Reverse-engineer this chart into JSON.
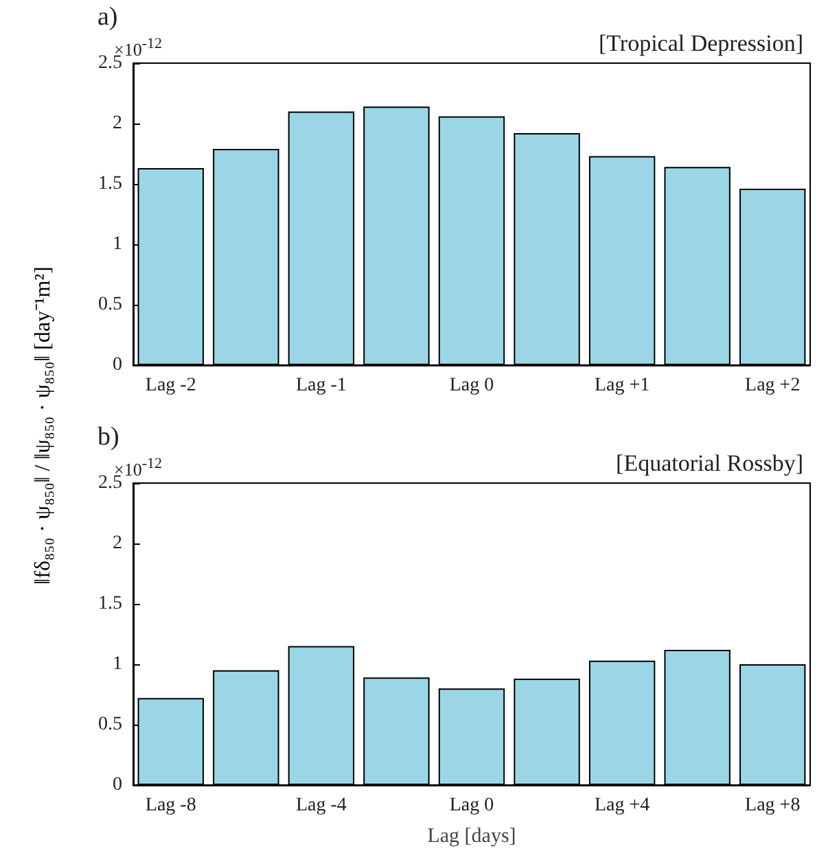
{
  "chart_data": [
    {
      "type": "bar",
      "title": "[Tropical Depression]",
      "ylabel": "‖fδ₈₅₀ · ψ₈₅₀‖ / ‖ψ₈₅₀ · ψ₈₅₀‖ [day⁻¹m²]",
      "annotations": [
        "a)",
        "×10$^{-12}$"
      ],
      "categories": [
        "Lag -2",
        null,
        "Lag -1",
        null,
        "Lag 0",
        null,
        "Lag +1",
        null,
        "Lag +2"
      ],
      "values": [
        1.63,
        1.79,
        2.1,
        2.14,
        2.06,
        1.92,
        1.73,
        1.64,
        1.46
      ],
      "color": "#9ad6e6",
      "ylim": [
        0,
        2.5
      ],
      "yticks": [
        0,
        0.5,
        1,
        1.5,
        2,
        2.5
      ]
    },
    {
      "type": "bar",
      "title": "[Equatorial Rossby]",
      "xlabel": "Lag [days]",
      "annotations": [
        "b)",
        "×10$^{-12}$"
      ],
      "categories": [
        "Lag -8",
        null,
        "Lag -4",
        null,
        "Lag 0",
        null,
        "Lag +4",
        null,
        "Lag +8"
      ],
      "values": [
        0.72,
        0.95,
        1.15,
        0.89,
        0.8,
        0.88,
        1.03,
        1.12,
        1.0
      ],
      "color": "#9ad6e6",
      "ylim": [
        0,
        2.5
      ],
      "yticks": [
        0,
        0.5,
        1,
        1.5,
        2,
        2.5
      ]
    }
  ]
}
